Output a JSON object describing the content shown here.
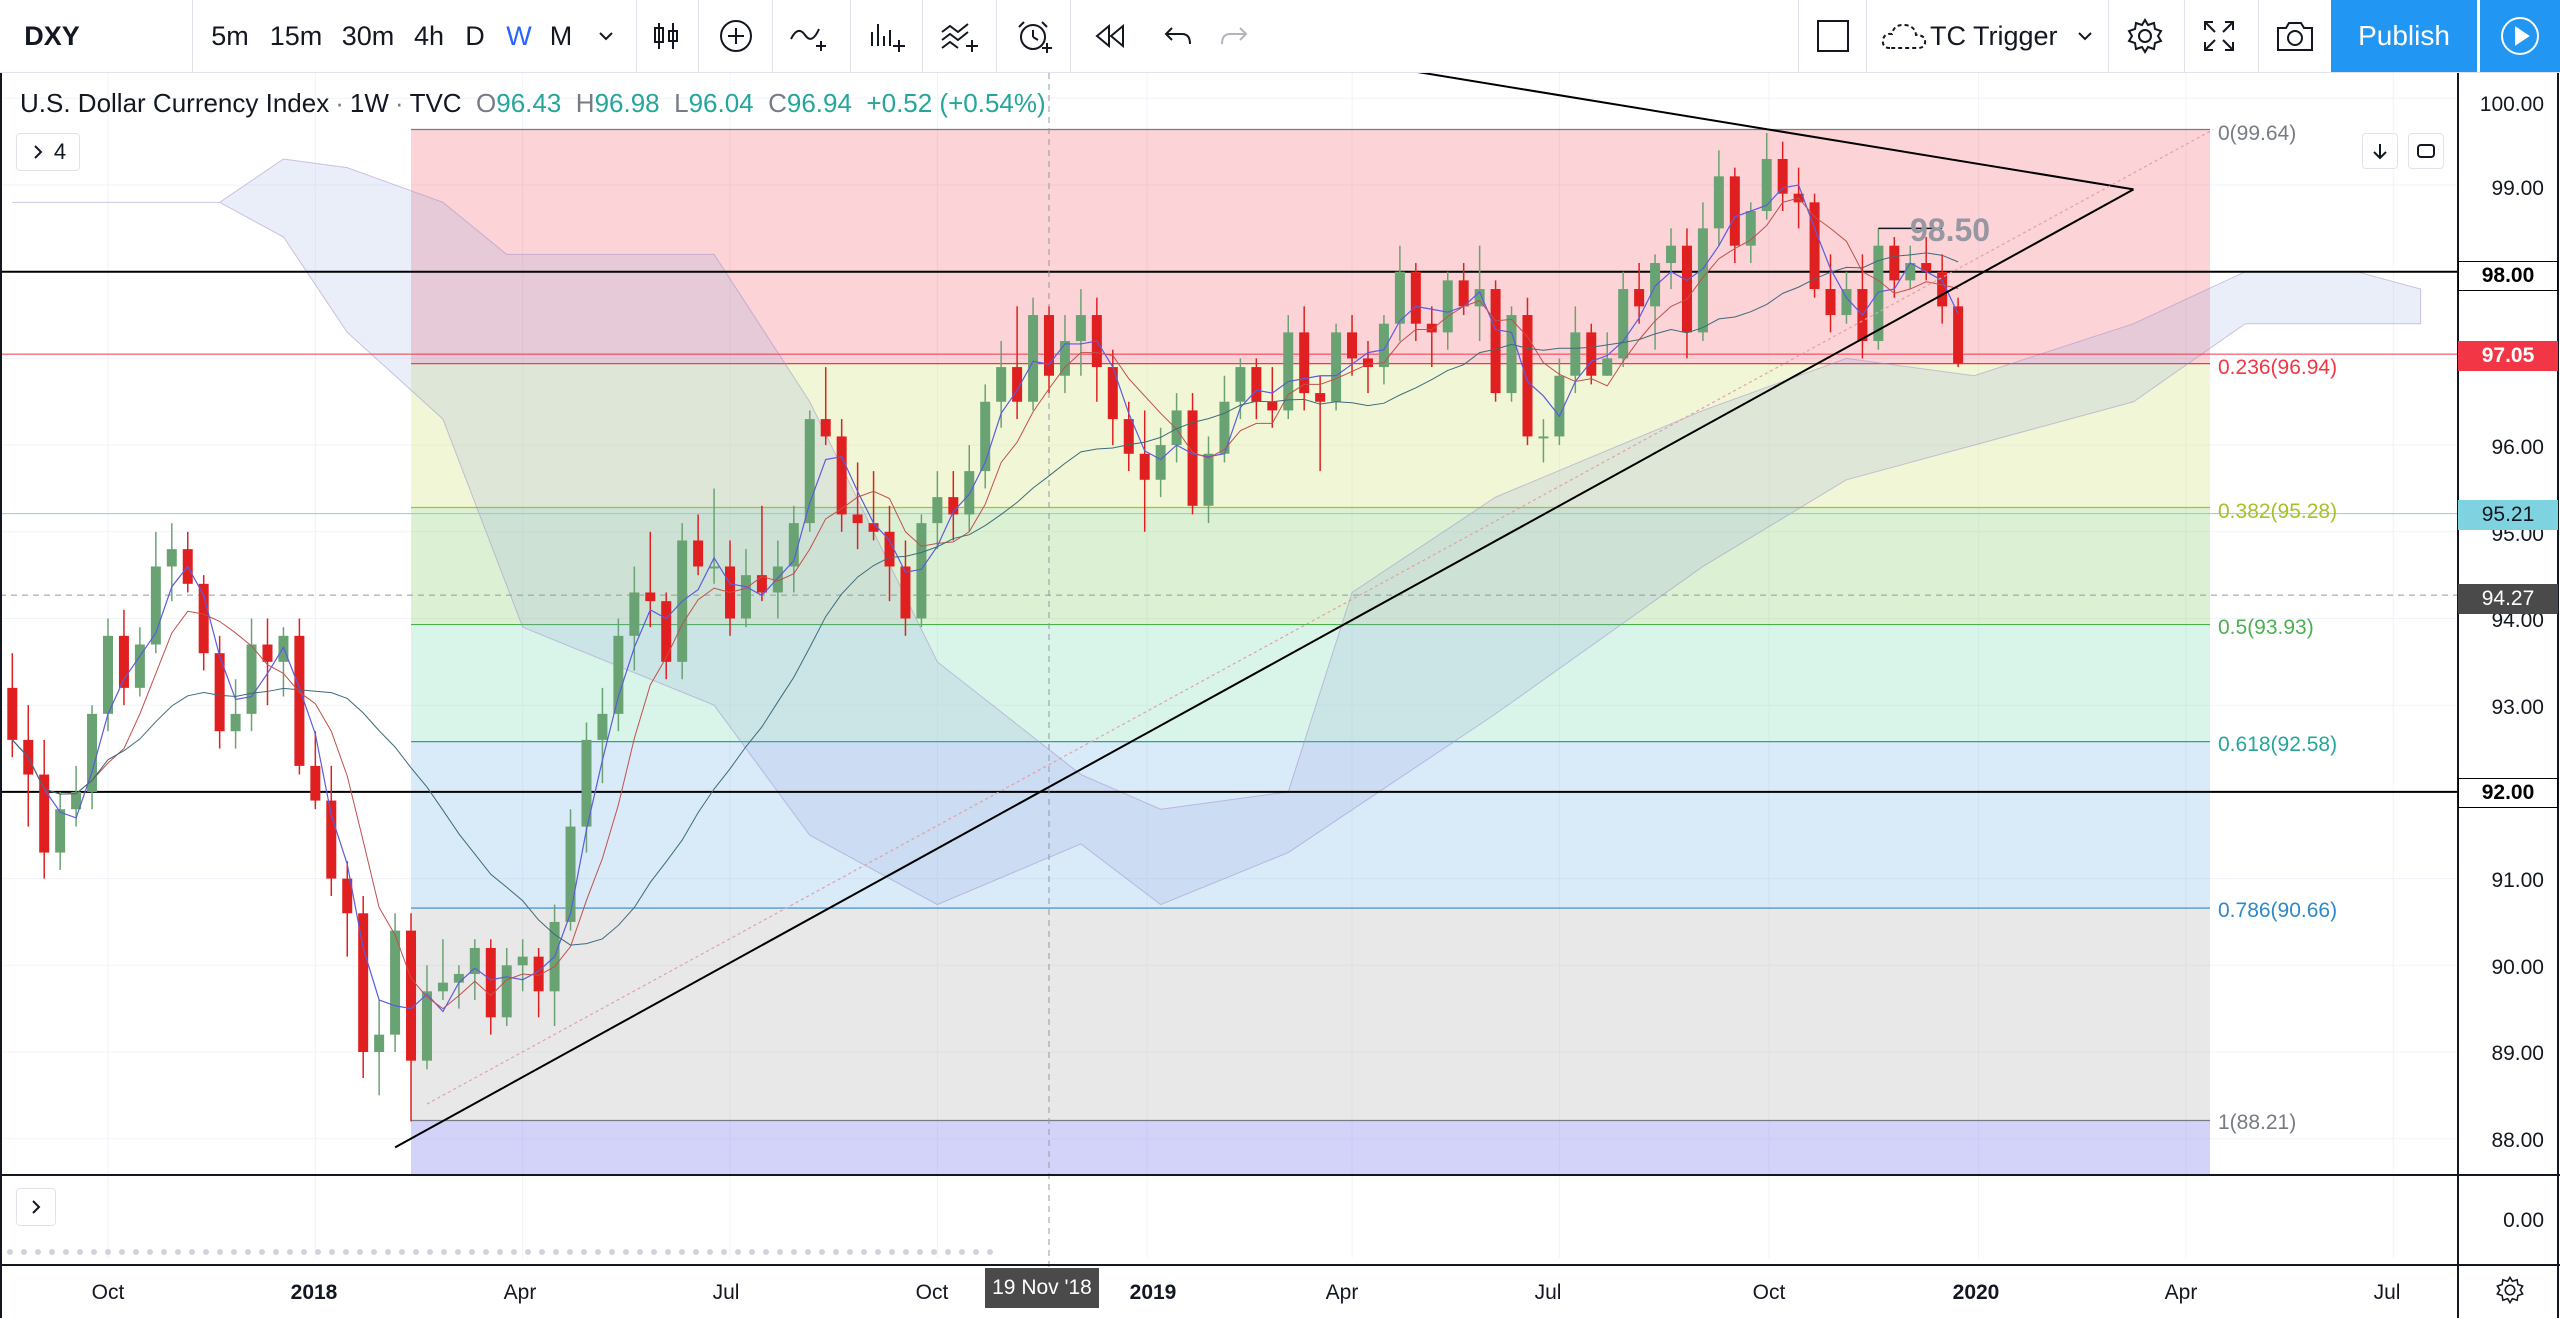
{
  "toolbar": {
    "symbol": "DXY",
    "intervals": [
      "5m",
      "15m",
      "30m",
      "4h",
      "D",
      "W",
      "M"
    ],
    "active_interval": "W",
    "alert_name": "TC Trigger",
    "publish_label": "Publish",
    "icons": [
      "chevron-down-icon",
      "candles-icon",
      "add-indicator-icon",
      "compare-icon",
      "indicators-icon",
      "templates-icon",
      "alert-icon",
      "replay-icon",
      "undo-icon",
      "redo-icon",
      "rectangle-icon",
      "cloud-icon",
      "settings-icon",
      "fullscreen-icon",
      "camera-icon",
      "play-icon"
    ]
  },
  "legend": {
    "title": "U.S. Dollar Currency Index",
    "interval": "1W",
    "source": "TVC",
    "o_label": "O",
    "o": "96.43",
    "h_label": "H",
    "h": "96.98",
    "l_label": "L",
    "l": "96.04",
    "c_label": "C",
    "c": "96.94",
    "change": "+0.52 (+0.54%)",
    "indicators_count": "4"
  },
  "crosshair_time": "19 Nov '18",
  "price_axis": {
    "ticks": [
      "100.00",
      "99.00",
      "96.00",
      "95.00",
      "94.00",
      "93.00",
      "91.00",
      "90.00",
      "89.00",
      "88.00"
    ],
    "lower_pane_tick": "0.00",
    "labels": [
      {
        "text": "98.00",
        "bg": "#ffffff",
        "fg": "#000000"
      },
      {
        "text": "97.05",
        "bg": "#f23645",
        "fg": "#ffffff"
      },
      {
        "text": "95.21",
        "bg": "#7fd3e0",
        "fg": "#131722"
      },
      {
        "text": "94.27",
        "bg": "#4a4a4a",
        "fg": "#ffffff"
      },
      {
        "text": "92.00",
        "bg": "#ffffff",
        "fg": "#000000"
      }
    ]
  },
  "time_axis": [
    {
      "text": "Oct",
      "bold": false
    },
    {
      "text": "2018",
      "bold": true
    },
    {
      "text": "Apr",
      "bold": false
    },
    {
      "text": "Jul",
      "bold": false
    },
    {
      "text": "Oct",
      "bold": false
    },
    {
      "text": "2019",
      "bold": true
    },
    {
      "text": "Apr",
      "bold": false
    },
    {
      "text": "Jul",
      "bold": false
    },
    {
      "text": "Oct",
      "bold": false
    },
    {
      "text": "2020",
      "bold": true
    },
    {
      "text": "Apr",
      "bold": false
    },
    {
      "text": "Jul",
      "bold": false
    }
  ],
  "fib_levels": [
    {
      "label": "0(99.64)",
      "price": 99.64,
      "color": "#787b86"
    },
    {
      "label": "0.236(96.94)",
      "price": 96.94,
      "color": "#f23645"
    },
    {
      "label": "0.382(95.28)",
      "price": 95.28,
      "color": "#a8c12a"
    },
    {
      "label": "0.5(93.93)",
      "price": 93.93,
      "color": "#4caf50"
    },
    {
      "label": "0.618(92.58)",
      "price": 92.58,
      "color": "#26a69a"
    },
    {
      "label": "0.786(90.66)",
      "price": 90.66,
      "color": "#2e89c9"
    },
    {
      "label": "1(88.21)",
      "price": 88.21,
      "color": "#787b86"
    }
  ],
  "annotation": "98.50",
  "horizontal_lines": [
    98.0,
    92.0
  ],
  "colors": {
    "up_candle": "#6aa373",
    "down_candle": "#e02020",
    "accent": "#2962ff",
    "publish": "#2196f3"
  },
  "chart_data": {
    "type": "candlestick",
    "title": "U.S. Dollar Currency Index",
    "interval": "1W",
    "ylim": [
      87.4,
      100.4
    ],
    "x_range": [
      "2017-08-21",
      "2020-08-31"
    ],
    "grid": true,
    "candles": [
      {
        "t": "2017-08-21",
        "o": 93.2,
        "h": 93.6,
        "l": 92.4,
        "c": 92.6
      },
      {
        "t": "2017-08-28",
        "o": 92.6,
        "h": 93.0,
        "l": 91.6,
        "c": 92.2
      },
      {
        "t": "2017-09-04",
        "o": 92.2,
        "h": 92.6,
        "l": 91.0,
        "c": 91.3
      },
      {
        "t": "2017-09-11",
        "o": 91.3,
        "h": 92.0,
        "l": 91.1,
        "c": 91.8
      },
      {
        "t": "2017-09-18",
        "o": 91.8,
        "h": 92.3,
        "l": 91.6,
        "c": 92.0
      },
      {
        "t": "2017-09-25",
        "o": 92.0,
        "h": 93.0,
        "l": 91.8,
        "c": 92.9
      },
      {
        "t": "2017-10-02",
        "o": 92.9,
        "h": 94.0,
        "l": 92.7,
        "c": 93.8
      },
      {
        "t": "2017-10-09",
        "o": 93.8,
        "h": 94.1,
        "l": 93.0,
        "c": 93.2
      },
      {
        "t": "2017-10-16",
        "o": 93.2,
        "h": 93.9,
        "l": 93.1,
        "c": 93.7
      },
      {
        "t": "2017-10-23",
        "o": 93.7,
        "h": 95.0,
        "l": 93.6,
        "c": 94.6
      },
      {
        "t": "2017-10-30",
        "o": 94.6,
        "h": 95.1,
        "l": 94.2,
        "c": 94.8
      },
      {
        "t": "2017-11-06",
        "o": 94.8,
        "h": 95.0,
        "l": 94.3,
        "c": 94.4
      },
      {
        "t": "2017-11-13",
        "o": 94.4,
        "h": 94.5,
        "l": 93.4,
        "c": 93.6
      },
      {
        "t": "2017-11-20",
        "o": 93.6,
        "h": 93.8,
        "l": 92.5,
        "c": 92.7
      },
      {
        "t": "2017-11-27",
        "o": 92.7,
        "h": 93.3,
        "l": 92.5,
        "c": 92.9
      },
      {
        "t": "2017-12-04",
        "o": 92.9,
        "h": 94.0,
        "l": 92.7,
        "c": 93.7
      },
      {
        "t": "2017-12-11",
        "o": 93.7,
        "h": 94.0,
        "l": 93.0,
        "c": 93.5
      },
      {
        "t": "2017-12-18",
        "o": 93.5,
        "h": 93.9,
        "l": 93.1,
        "c": 93.8
      },
      {
        "t": "2017-12-25",
        "o": 93.8,
        "h": 94.0,
        "l": 92.2,
        "c": 92.3
      },
      {
        "t": "2018-01-01",
        "o": 92.3,
        "h": 92.7,
        "l": 91.8,
        "c": 91.9
      },
      {
        "t": "2018-01-08",
        "o": 91.9,
        "h": 92.3,
        "l": 90.8,
        "c": 91.0
      },
      {
        "t": "2018-01-15",
        "o": 91.0,
        "h": 91.2,
        "l": 90.1,
        "c": 90.6
      },
      {
        "t": "2018-01-22",
        "o": 90.6,
        "h": 90.8,
        "l": 88.7,
        "c": 89.0
      },
      {
        "t": "2018-01-29",
        "o": 89.0,
        "h": 89.6,
        "l": 88.5,
        "c": 89.2
      },
      {
        "t": "2018-02-05",
        "o": 89.2,
        "h": 90.6,
        "l": 89.0,
        "c": 90.4
      },
      {
        "t": "2018-02-12",
        "o": 90.4,
        "h": 90.6,
        "l": 88.2,
        "c": 88.9
      },
      {
        "t": "2018-02-19",
        "o": 88.9,
        "h": 90.0,
        "l": 88.8,
        "c": 89.7
      },
      {
        "t": "2018-02-26",
        "o": 89.7,
        "h": 90.3,
        "l": 89.6,
        "c": 89.8
      },
      {
        "t": "2018-03-05",
        "o": 89.8,
        "h": 90.0,
        "l": 89.5,
        "c": 89.9
      },
      {
        "t": "2018-03-12",
        "o": 89.9,
        "h": 90.3,
        "l": 89.6,
        "c": 90.2
      },
      {
        "t": "2018-03-19",
        "o": 90.2,
        "h": 90.3,
        "l": 89.2,
        "c": 89.4
      },
      {
        "t": "2018-03-26",
        "o": 89.4,
        "h": 90.2,
        "l": 89.3,
        "c": 90.0
      },
      {
        "t": "2018-04-02",
        "o": 90.0,
        "h": 90.3,
        "l": 89.7,
        "c": 90.1
      },
      {
        "t": "2018-04-09",
        "o": 90.1,
        "h": 90.2,
        "l": 89.4,
        "c": 89.7
      },
      {
        "t": "2018-04-16",
        "o": 89.7,
        "h": 90.7,
        "l": 89.3,
        "c": 90.5
      },
      {
        "t": "2018-04-23",
        "o": 90.5,
        "h": 91.8,
        "l": 90.4,
        "c": 91.6
      },
      {
        "t": "2018-04-30",
        "o": 91.6,
        "h": 92.8,
        "l": 91.3,
        "c": 92.6
      },
      {
        "t": "2018-05-07",
        "o": 92.6,
        "h": 93.2,
        "l": 92.1,
        "c": 92.9
      },
      {
        "t": "2018-05-14",
        "o": 92.9,
        "h": 94.0,
        "l": 92.7,
        "c": 93.8
      },
      {
        "t": "2018-05-21",
        "o": 93.8,
        "h": 94.6,
        "l": 93.4,
        "c": 94.3
      },
      {
        "t": "2018-05-28",
        "o": 94.3,
        "h": 95.0,
        "l": 93.9,
        "c": 94.2
      },
      {
        "t": "2018-06-04",
        "o": 94.2,
        "h": 94.3,
        "l": 93.3,
        "c": 93.5
      },
      {
        "t": "2018-06-11",
        "o": 93.5,
        "h": 95.1,
        "l": 93.3,
        "c": 94.9
      },
      {
        "t": "2018-06-18",
        "o": 94.9,
        "h": 95.2,
        "l": 94.5,
        "c": 94.6
      },
      {
        "t": "2018-06-25",
        "o": 94.6,
        "h": 95.5,
        "l": 94.4,
        "c": 94.6
      },
      {
        "t": "2018-07-02",
        "o": 94.6,
        "h": 94.9,
        "l": 93.8,
        "c": 94.0
      },
      {
        "t": "2018-07-09",
        "o": 94.0,
        "h": 94.8,
        "l": 93.9,
        "c": 94.5
      },
      {
        "t": "2018-07-16",
        "o": 94.5,
        "h": 95.3,
        "l": 94.2,
        "c": 94.3
      },
      {
        "t": "2018-07-23",
        "o": 94.3,
        "h": 94.9,
        "l": 94.0,
        "c": 94.6
      },
      {
        "t": "2018-07-30",
        "o": 94.6,
        "h": 95.3,
        "l": 94.3,
        "c": 95.1
      },
      {
        "t": "2018-08-06",
        "o": 95.1,
        "h": 96.4,
        "l": 95.0,
        "c": 96.3
      },
      {
        "t": "2018-08-13",
        "o": 96.3,
        "h": 96.9,
        "l": 96.0,
        "c": 96.1
      },
      {
        "t": "2018-08-20",
        "o": 96.1,
        "h": 96.3,
        "l": 95.0,
        "c": 95.2
      },
      {
        "t": "2018-08-27",
        "o": 95.2,
        "h": 95.8,
        "l": 94.8,
        "c": 95.1
      },
      {
        "t": "2018-09-03",
        "o": 95.1,
        "h": 95.7,
        "l": 94.9,
        "c": 95.0
      },
      {
        "t": "2018-09-10",
        "o": 95.0,
        "h": 95.3,
        "l": 94.2,
        "c": 94.6
      },
      {
        "t": "2018-09-17",
        "o": 94.6,
        "h": 94.9,
        "l": 93.8,
        "c": 94.0
      },
      {
        "t": "2018-09-24",
        "o": 94.0,
        "h": 95.2,
        "l": 93.9,
        "c": 95.1
      },
      {
        "t": "2018-10-01",
        "o": 95.1,
        "h": 95.7,
        "l": 94.8,
        "c": 95.4
      },
      {
        "t": "2018-10-08",
        "o": 95.4,
        "h": 95.7,
        "l": 94.9,
        "c": 95.2
      },
      {
        "t": "2018-10-15",
        "o": 95.2,
        "h": 96.0,
        "l": 95.0,
        "c": 95.7
      },
      {
        "t": "2018-10-22",
        "o": 95.7,
        "h": 96.7,
        "l": 95.5,
        "c": 96.5
      },
      {
        "t": "2018-10-29",
        "o": 96.5,
        "h": 97.2,
        "l": 96.2,
        "c": 96.9
      },
      {
        "t": "2018-11-05",
        "o": 96.9,
        "h": 97.6,
        "l": 96.3,
        "c": 96.5
      },
      {
        "t": "2018-11-12",
        "o": 96.5,
        "h": 97.7,
        "l": 96.4,
        "c": 97.5
      },
      {
        "t": "2018-11-19",
        "o": 97.5,
        "h": 97.6,
        "l": 96.6,
        "c": 96.8
      },
      {
        "t": "2018-11-26",
        "o": 96.8,
        "h": 97.5,
        "l": 96.6,
        "c": 97.2
      },
      {
        "t": "2018-12-03",
        "o": 97.2,
        "h": 97.8,
        "l": 96.8,
        "c": 97.5
      },
      {
        "t": "2018-12-10",
        "o": 97.5,
        "h": 97.7,
        "l": 96.5,
        "c": 96.9
      },
      {
        "t": "2018-12-17",
        "o": 96.9,
        "h": 97.1,
        "l": 96.0,
        "c": 96.3
      },
      {
        "t": "2018-12-24",
        "o": 96.3,
        "h": 96.5,
        "l": 95.7,
        "c": 95.9
      },
      {
        "t": "2018-12-31",
        "o": 95.9,
        "h": 96.4,
        "l": 95.0,
        "c": 95.6
      },
      {
        "t": "2019-01-07",
        "o": 95.6,
        "h": 96.2,
        "l": 95.4,
        "c": 96.0
      },
      {
        "t": "2019-01-14",
        "o": 96.0,
        "h": 96.6,
        "l": 95.8,
        "c": 96.4
      },
      {
        "t": "2019-01-21",
        "o": 96.4,
        "h": 96.6,
        "l": 95.2,
        "c": 95.3
      },
      {
        "t": "2019-01-28",
        "o": 95.3,
        "h": 96.1,
        "l": 95.1,
        "c": 95.9
      },
      {
        "t": "2019-02-04",
        "o": 95.9,
        "h": 96.8,
        "l": 95.8,
        "c": 96.5
      },
      {
        "t": "2019-02-11",
        "o": 96.5,
        "h": 97.0,
        "l": 96.3,
        "c": 96.9
      },
      {
        "t": "2019-02-18",
        "o": 96.9,
        "h": 97.0,
        "l": 96.3,
        "c": 96.5
      },
      {
        "t": "2019-02-25",
        "o": 96.5,
        "h": 96.9,
        "l": 96.2,
        "c": 96.4
      },
      {
        "t": "2019-03-04",
        "o": 96.4,
        "h": 97.5,
        "l": 96.3,
        "c": 97.3
      },
      {
        "t": "2019-03-11",
        "o": 97.3,
        "h": 97.6,
        "l": 96.4,
        "c": 96.6
      },
      {
        "t": "2019-03-18",
        "o": 96.6,
        "h": 96.8,
        "l": 95.7,
        "c": 96.5
      },
      {
        "t": "2019-03-25",
        "o": 96.5,
        "h": 97.4,
        "l": 96.4,
        "c": 97.3
      },
      {
        "t": "2019-04-01",
        "o": 97.3,
        "h": 97.5,
        "l": 96.8,
        "c": 97.0
      },
      {
        "t": "2019-04-08",
        "o": 97.0,
        "h": 97.2,
        "l": 96.6,
        "c": 96.9
      },
      {
        "t": "2019-04-15",
        "o": 96.9,
        "h": 97.5,
        "l": 96.7,
        "c": 97.4
      },
      {
        "t": "2019-04-22",
        "o": 97.4,
        "h": 98.3,
        "l": 97.2,
        "c": 98.0
      },
      {
        "t": "2019-04-29",
        "o": 98.0,
        "h": 98.1,
        "l": 97.2,
        "c": 97.4
      },
      {
        "t": "2019-05-06",
        "o": 97.4,
        "h": 97.6,
        "l": 96.9,
        "c": 97.3
      },
      {
        "t": "2019-05-13",
        "o": 97.3,
        "h": 98.0,
        "l": 97.1,
        "c": 97.9
      },
      {
        "t": "2019-05-20",
        "o": 97.9,
        "h": 98.1,
        "l": 97.5,
        "c": 97.6
      },
      {
        "t": "2019-05-27",
        "o": 97.6,
        "h": 98.3,
        "l": 97.2,
        "c": 97.8
      },
      {
        "t": "2019-06-03",
        "o": 97.8,
        "h": 97.9,
        "l": 96.5,
        "c": 96.6
      },
      {
        "t": "2019-06-10",
        "o": 96.6,
        "h": 97.6,
        "l": 96.5,
        "c": 97.5
      },
      {
        "t": "2019-06-17",
        "o": 97.5,
        "h": 97.7,
        "l": 96.0,
        "c": 96.1
      },
      {
        "t": "2019-06-24",
        "o": 96.1,
        "h": 96.3,
        "l": 95.8,
        "c": 96.1
      },
      {
        "t": "2019-07-01",
        "o": 96.1,
        "h": 97.0,
        "l": 96.0,
        "c": 96.8
      },
      {
        "t": "2019-07-08",
        "o": 96.8,
        "h": 97.6,
        "l": 96.6,
        "c": 97.3
      },
      {
        "t": "2019-07-15",
        "o": 97.3,
        "h": 97.4,
        "l": 96.7,
        "c": 96.8
      },
      {
        "t": "2019-07-22",
        "o": 96.8,
        "h": 97.3,
        "l": 96.8,
        "c": 97.0
      },
      {
        "t": "2019-07-29",
        "o": 97.0,
        "h": 98.0,
        "l": 96.9,
        "c": 97.8
      },
      {
        "t": "2019-08-05",
        "o": 97.8,
        "h": 98.1,
        "l": 97.4,
        "c": 97.6
      },
      {
        "t": "2019-08-12",
        "o": 97.6,
        "h": 98.2,
        "l": 97.1,
        "c": 98.1
      },
      {
        "t": "2019-08-19",
        "o": 98.1,
        "h": 98.5,
        "l": 97.8,
        "c": 98.3
      },
      {
        "t": "2019-08-26",
        "o": 98.3,
        "h": 98.5,
        "l": 97.0,
        "c": 97.3
      },
      {
        "t": "2019-09-02",
        "o": 97.3,
        "h": 98.8,
        "l": 97.2,
        "c": 98.5
      },
      {
        "t": "2019-09-09",
        "o": 98.5,
        "h": 99.4,
        "l": 98.3,
        "c": 99.1
      },
      {
        "t": "2019-09-16",
        "o": 99.1,
        "h": 99.2,
        "l": 98.1,
        "c": 98.3
      },
      {
        "t": "2019-09-23",
        "o": 98.3,
        "h": 98.8,
        "l": 98.1,
        "c": 98.7
      },
      {
        "t": "2019-09-30",
        "o": 98.7,
        "h": 99.6,
        "l": 98.6,
        "c": 99.3
      },
      {
        "t": "2019-10-07",
        "o": 99.3,
        "h": 99.5,
        "l": 98.7,
        "c": 98.9
      },
      {
        "t": "2019-10-14",
        "o": 98.9,
        "h": 99.2,
        "l": 98.5,
        "c": 98.8
      },
      {
        "t": "2019-10-21",
        "o": 98.8,
        "h": 98.9,
        "l": 97.7,
        "c": 97.8
      },
      {
        "t": "2019-10-28",
        "o": 97.8,
        "h": 98.2,
        "l": 97.3,
        "c": 97.5
      },
      {
        "t": "2019-11-04",
        "o": 97.5,
        "h": 98.0,
        "l": 97.4,
        "c": 97.8
      },
      {
        "t": "2019-11-11",
        "o": 97.8,
        "h": 98.2,
        "l": 97.0,
        "c": 97.2
      },
      {
        "t": "2019-11-18",
        "o": 97.2,
        "h": 98.5,
        "l": 97.1,
        "c": 98.3
      },
      {
        "t": "2019-11-25",
        "o": 98.3,
        "h": 98.4,
        "l": 97.7,
        "c": 97.9
      },
      {
        "t": "2019-12-02",
        "o": 97.9,
        "h": 98.3,
        "l": 97.8,
        "c": 98.1
      },
      {
        "t": "2019-12-09",
        "o": 98.1,
        "h": 98.4,
        "l": 97.9,
        "c": 98.0
      },
      {
        "t": "2019-12-16",
        "o": 98.0,
        "h": 98.2,
        "l": 97.4,
        "c": 97.6
      },
      {
        "t": "2019-12-23",
        "o": 97.6,
        "h": 97.7,
        "l": 96.9,
        "c": 96.94
      }
    ],
    "trendlines": [
      {
        "from": {
          "t": "2018-02-05",
          "p": 87.9
        },
        "to": {
          "t": "2020-03-09",
          "p": 98.95
        }
      },
      {
        "from": {
          "t": "2018-11-19",
          "p": 101.0
        },
        "to": {
          "t": "2020-03-09",
          "p": 98.95
        }
      }
    ],
    "horizontal_lines": [
      98.0,
      92.0,
      97.05
    ]
  }
}
